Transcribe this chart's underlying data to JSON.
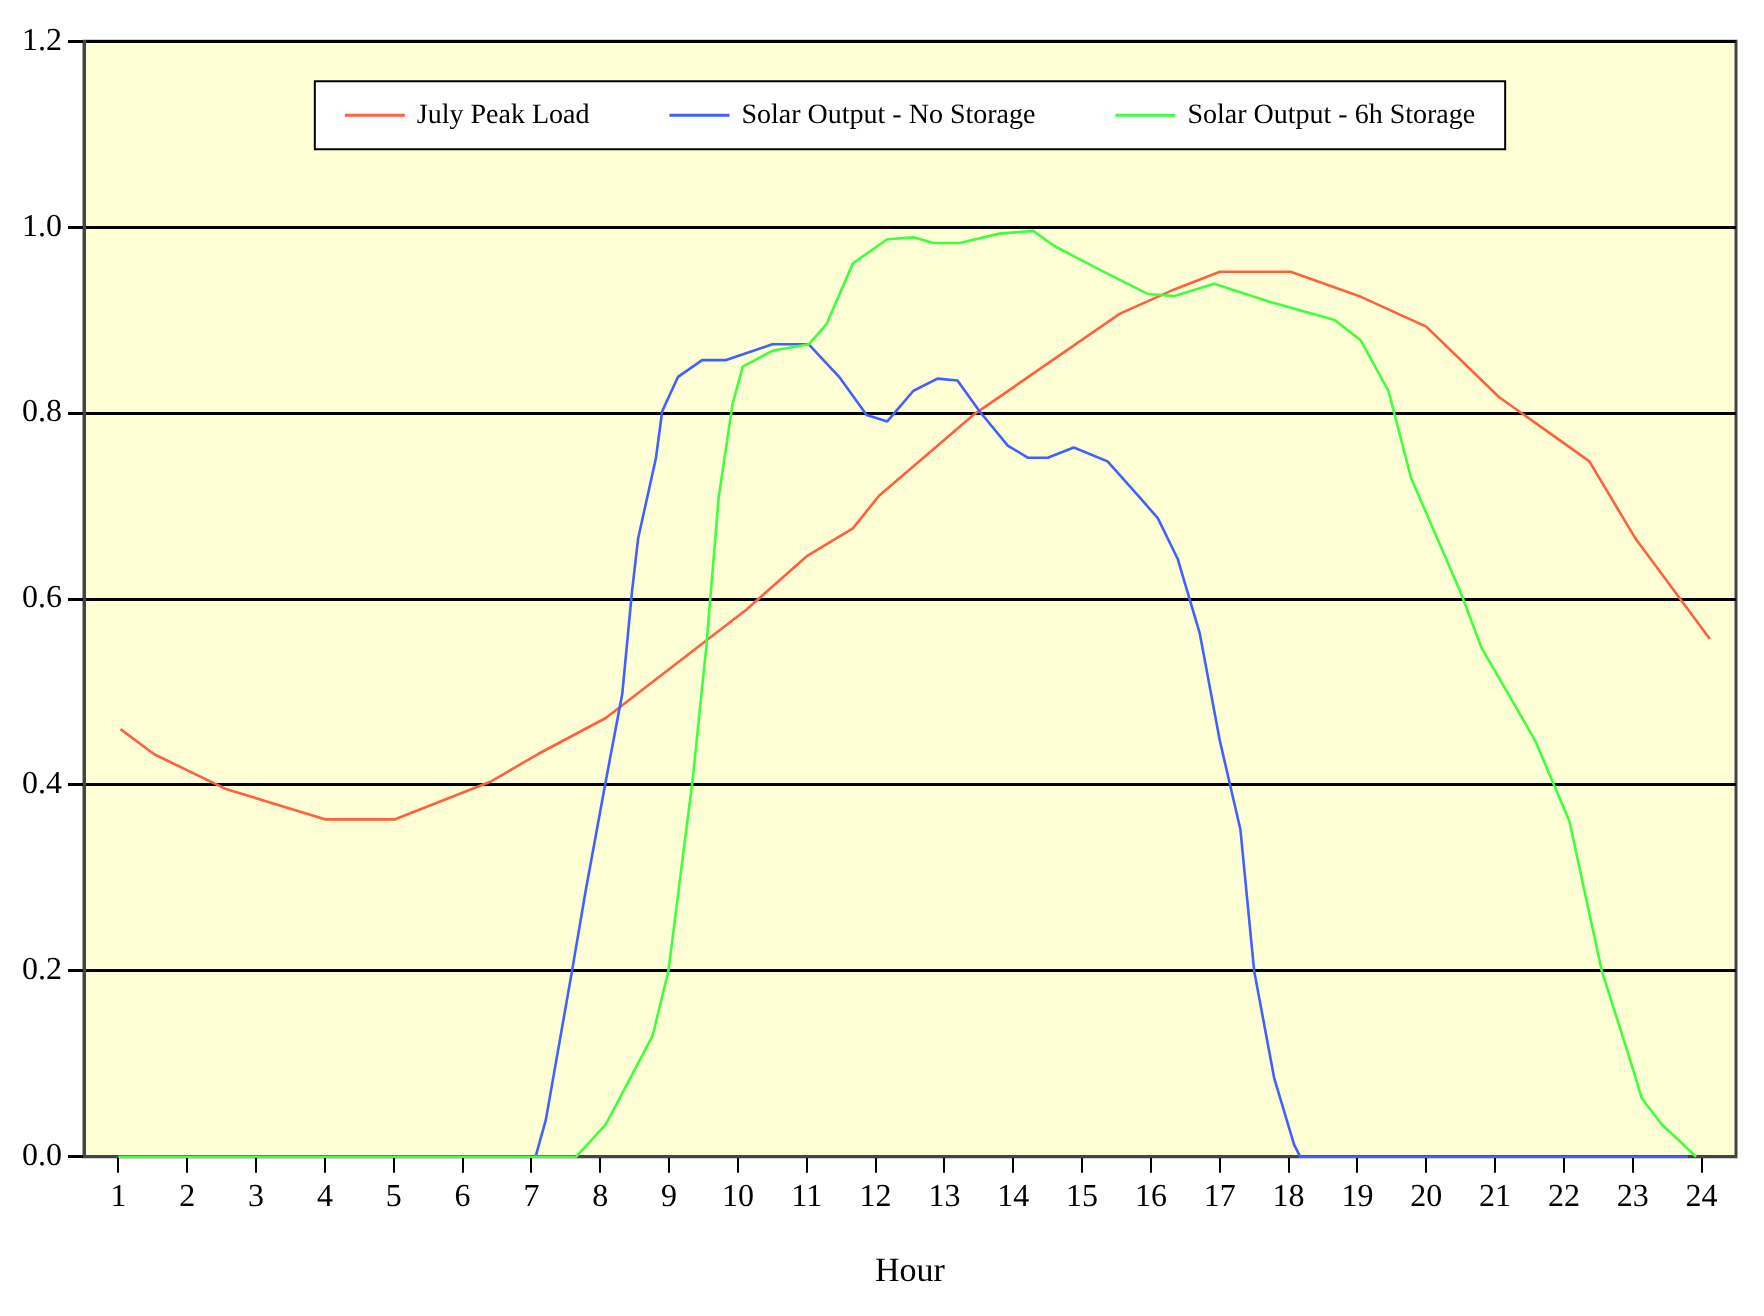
{
  "chart_data": {
    "type": "line",
    "xlabel": "Hour",
    "xlim": [
      0.5,
      24.5
    ],
    "xticks": [
      1,
      2,
      3,
      4,
      5,
      6,
      7,
      8,
      9,
      10,
      11,
      12,
      13,
      14,
      15,
      16,
      17,
      18,
      19,
      20,
      21,
      22,
      23,
      24
    ],
    "ylim": [
      0,
      1.2
    ],
    "yticks": [
      {
        "value": 0,
        "label": "0.0"
      },
      {
        "value": 0.2,
        "label": "0.2"
      },
      {
        "value": 0.4,
        "label": "0.4"
      },
      {
        "value": 0.6,
        "label": "0.6"
      },
      {
        "value": 0.8,
        "label": "0.8"
      },
      {
        "value": 1,
        "label": "1.0"
      },
      {
        "value": 1.2,
        "label": "1.2"
      }
    ],
    "grid": "y",
    "legend": "top",
    "marker": "none",
    "line_style": "solid",
    "series": [
      {
        "name": "July Peak Load",
        "color": "#ff6040",
        "x": [
          1.03,
          1.52,
          2.55,
          4.0,
          5.02,
          6.42,
          7.09,
          8.08,
          10.13,
          11.0,
          11.67,
          12.05,
          13.42,
          15.55,
          16.34,
          17.0,
          18.03,
          19.02,
          20.0,
          21.06,
          22.05,
          22.37,
          23.04,
          24.12
        ],
        "values": [
          0.46,
          0.433,
          0.396,
          0.363,
          0.363,
          0.404,
          0.433,
          0.472,
          0.589,
          0.646,
          0.676,
          0.711,
          0.798,
          0.907,
          0.933,
          0.952,
          0.952,
          0.926,
          0.893,
          0.817,
          0.765,
          0.748,
          0.665,
          0.557
        ]
      },
      {
        "name": "Solar Output - No Storage",
        "color": "#4060ff",
        "x": [
          7.06,
          7.21,
          7.59,
          7.79,
          8.08,
          8.32,
          8.46,
          8.55,
          8.81,
          8.9,
          9.13,
          9.48,
          9.83,
          10.5,
          11.03,
          11.47,
          11.87,
          12.17,
          12.55,
          12.9,
          13.19,
          13.51,
          13.92,
          14.21,
          14.5,
          14.88,
          15.37,
          15.84,
          16.1,
          16.39,
          16.71,
          17.0,
          17.3,
          17.5,
          17.79,
          18.08,
          18.17,
          23.8
        ],
        "values": [
          0,
          0.04,
          0.2,
          0.287,
          0.404,
          0.498,
          0.607,
          0.665,
          0.752,
          0.802,
          0.839,
          0.857,
          0.857,
          0.874,
          0.874,
          0.839,
          0.798,
          0.791,
          0.824,
          0.837,
          0.835,
          0.802,
          0.765,
          0.752,
          0.752,
          0.763,
          0.748,
          0.709,
          0.687,
          0.643,
          0.563,
          0.448,
          0.352,
          0.2,
          0.085,
          0.013,
          0,
          0
        ]
      },
      {
        "name": "Solar Output - 6h Storage",
        "color": "#40ff40",
        "x": [
          1.0,
          7.3,
          7.65,
          8.08,
          8.26,
          8.76,
          8.99,
          9.19,
          9.34,
          9.54,
          9.72,
          9.92,
          10.07,
          10.5,
          11.03,
          11.29,
          11.67,
          12.17,
          12.55,
          12.84,
          13.22,
          13.8,
          14.29,
          14.59,
          15.26,
          15.96,
          16.34,
          16.92,
          17.71,
          18.67,
          19.05,
          19.45,
          19.78,
          20.5,
          20.8,
          21.58,
          22.08,
          22.55,
          22.95,
          23.13,
          23.42,
          23.92
        ],
        "values": [
          0,
          0,
          0,
          0.035,
          0.06,
          0.13,
          0.2,
          0.317,
          0.404,
          0.548,
          0.709,
          0.809,
          0.85,
          0.867,
          0.874,
          0.896,
          0.961,
          0.987,
          0.989,
          0.983,
          0.983,
          0.993,
          0.996,
          0.98,
          0.954,
          0.928,
          0.926,
          0.939,
          0.92,
          0.9,
          0.878,
          0.824,
          0.73,
          0.607,
          0.548,
          0.448,
          0.361,
          0.2,
          0.107,
          0.063,
          0.035,
          0
        ]
      }
    ]
  }
}
